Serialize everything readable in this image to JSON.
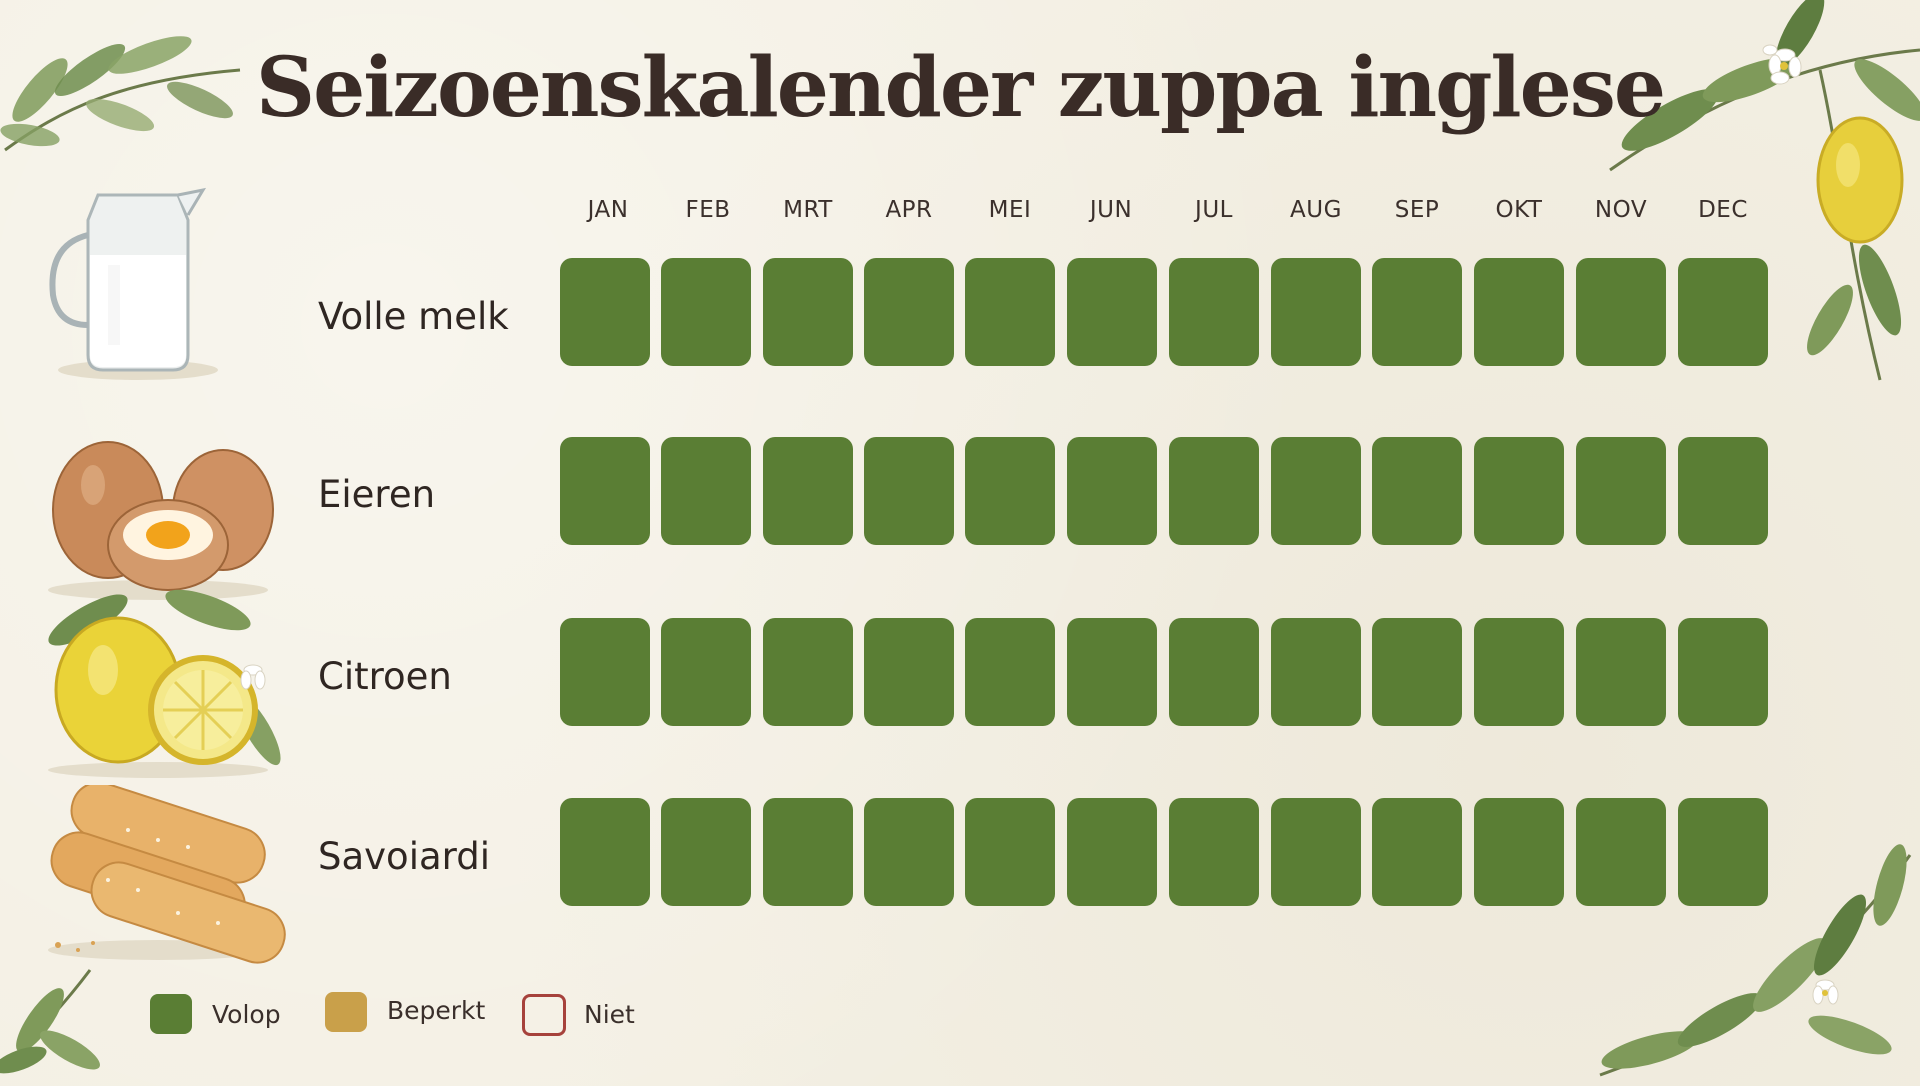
{
  "title": "Seizoenskalender zuppa inglese",
  "months": [
    "JAN",
    "FEB",
    "MRT",
    "APR",
    "MEI",
    "JUN",
    "JUL",
    "AUG",
    "SEP",
    "OKT",
    "NOV",
    "DEC"
  ],
  "colors": {
    "volop": "#5a7e34",
    "beperkt": "#c9a04a",
    "niet_border": "#a6423c",
    "background": "#f4f0e4"
  },
  "ingredients": [
    {
      "name": "Volle melk",
      "icon": "milk-jug-icon",
      "availability": [
        "volop",
        "volop",
        "volop",
        "volop",
        "volop",
        "volop",
        "volop",
        "volop",
        "volop",
        "volop",
        "volop",
        "volop"
      ]
    },
    {
      "name": "Eieren",
      "icon": "eggs-icon",
      "availability": [
        "volop",
        "volop",
        "volop",
        "volop",
        "volop",
        "volop",
        "volop",
        "volop",
        "volop",
        "volop",
        "volop",
        "volop"
      ]
    },
    {
      "name": "Citroen",
      "icon": "lemons-icon",
      "availability": [
        "volop",
        "volop",
        "volop",
        "volop",
        "volop",
        "volop",
        "volop",
        "volop",
        "volop",
        "volop",
        "volop",
        "volop"
      ]
    },
    {
      "name": "Savoiardi",
      "icon": "ladyfingers-icon",
      "availability": [
        "volop",
        "volop",
        "volop",
        "volop",
        "volop",
        "volop",
        "volop",
        "volop",
        "volop",
        "volop",
        "volop",
        "volop"
      ]
    }
  ],
  "legend": {
    "volop": "Volop",
    "beperkt": "Beperkt",
    "niet": "Niet"
  }
}
